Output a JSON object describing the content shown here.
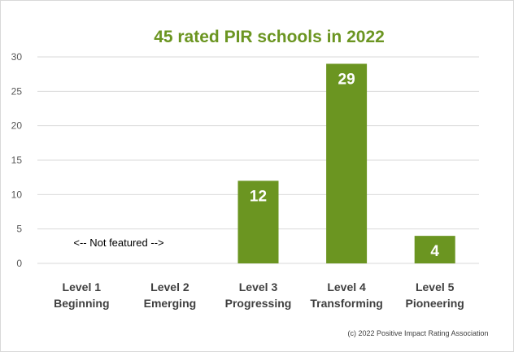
{
  "chart_data": {
    "type": "bar",
    "title": "45 rated PIR schools in 2022",
    "categories": [
      [
        "Level 1",
        "Beginning"
      ],
      [
        "Level 2",
        "Emerging"
      ],
      [
        "Level 3",
        "Progressing"
      ],
      [
        "Level 4",
        "Transforming"
      ],
      [
        "Level 5",
        "Pioneering"
      ]
    ],
    "values": [
      0,
      0,
      12,
      29,
      4
    ],
    "data_labels": [
      "",
      "",
      "12",
      "29",
      "4"
    ],
    "ylim": [
      0,
      30
    ],
    "yticks": [
      "0",
      "5",
      "10",
      "15",
      "20",
      "25",
      "30"
    ],
    "grid": true,
    "legend": "none",
    "annotation": "<-- Not featured -->",
    "credit": "(c) 2022 Positive Impact Rating Association",
    "colors": {
      "bar": "#6b9521",
      "title": "#6b9521",
      "grid": "#d9d9d9"
    }
  }
}
